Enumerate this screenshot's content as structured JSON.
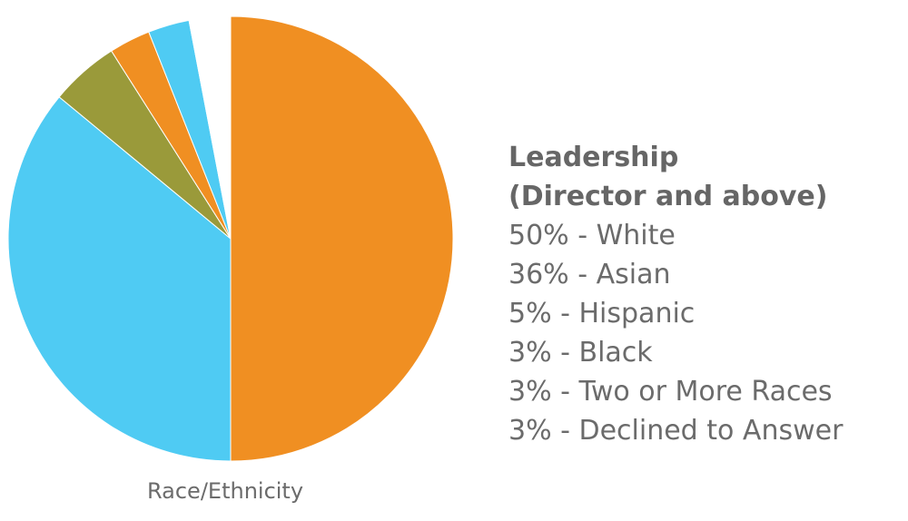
{
  "chart_data": {
    "type": "pie",
    "caption": "Race/Ethnicity",
    "title_line1": "Leadership",
    "title_line2": "(Director and above)",
    "slices": [
      {
        "label": "50% - White",
        "value": 50,
        "color": "#f08f22"
      },
      {
        "label": "36% - Asian",
        "value": 36,
        "color": "#4fcbf3"
      },
      {
        "label": "5% - Hispanic",
        "value": 5,
        "color": "#9a9a3a"
      },
      {
        "label": "3% - Black",
        "value": 3,
        "color": "#f08f22"
      },
      {
        "label": "3% - Two or More Races",
        "value": 3,
        "color": "#4fcbf3"
      },
      {
        "label": "3% - Declined to Answer",
        "value": 3,
        "color": "#ffffff"
      }
    ]
  }
}
